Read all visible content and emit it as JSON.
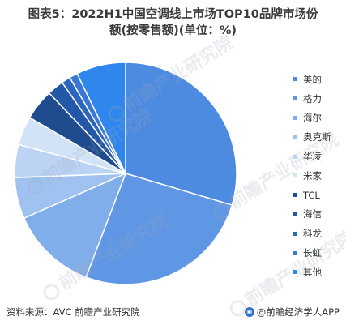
{
  "title": {
    "line1": "图表5：2022H1中国空调线上市场TOP10品牌市场份",
    "line2": "额(按零售额)(单位：%)"
  },
  "chart_data": {
    "type": "pie",
    "title": "图表5：2022H1中国空调线上市场TOP10品牌市场份额(按零售额)(单位：%)",
    "unit": "%",
    "start_angle_deg": 0,
    "direction": "clockwise",
    "legend_position": "right",
    "slices": [
      {
        "label": "美的",
        "value": 29.6,
        "color": "#4c8be0"
      },
      {
        "label": "格力",
        "value": 26.2,
        "color": "#5f97e4"
      },
      {
        "label": "海尔",
        "value": 12.6,
        "color": "#80aeeb"
      },
      {
        "label": "奥克斯",
        "value": 6.0,
        "color": "#9fc2f0"
      },
      {
        "label": "华凌",
        "value": 4.8,
        "color": "#bcd4f4"
      },
      {
        "label": "米家",
        "value": 4.2,
        "color": "#d2e2f7"
      },
      {
        "label": "TCL",
        "value": 4.5,
        "color": "#1f4b8f"
      },
      {
        "label": "海信",
        "value": 2.4,
        "color": "#2357a8"
      },
      {
        "label": "科龙",
        "value": 1.3,
        "color": "#2d66c2"
      },
      {
        "label": "长虹",
        "value": 1.2,
        "color": "#3a78d8"
      },
      {
        "label": "其他",
        "value": 7.2,
        "color": "#2f86ec"
      }
    ]
  },
  "footer": {
    "source": "资料来源：AVC 前瞻产业研究院",
    "brand": "@前瞻经济学人APP"
  },
  "watermark": {
    "text": "前瞻产业研究院"
  }
}
